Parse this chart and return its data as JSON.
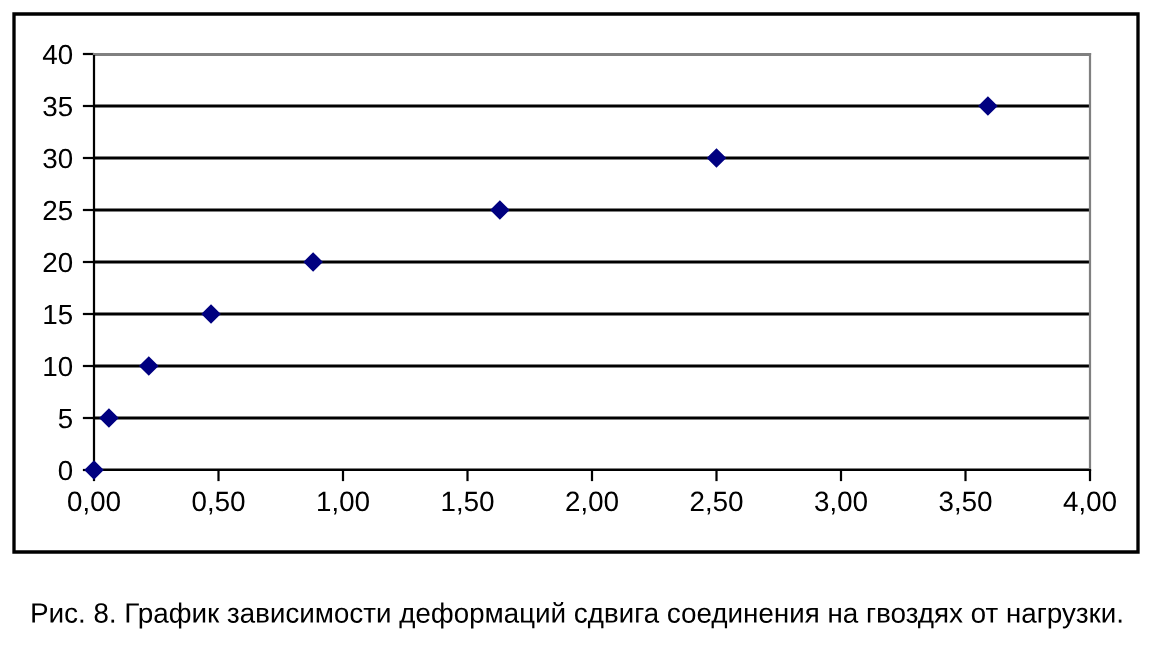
{
  "chart_data": {
    "type": "scatter",
    "x": [
      0,
      0.06,
      0.22,
      0.47,
      0.88,
      1.63,
      2.5,
      3.59
    ],
    "values": [
      0,
      5,
      10,
      15,
      20,
      25,
      30,
      35
    ],
    "color": "#000080",
    "marker": "diamond",
    "xlim": [
      0,
      4
    ],
    "xticks": [
      {
        "value": 0,
        "label": "0,00"
      },
      {
        "value": 0.5,
        "label": "0,50"
      },
      {
        "value": 1,
        "label": "1,00"
      },
      {
        "value": 1.5,
        "label": "1,50"
      },
      {
        "value": 2,
        "label": "2,00"
      },
      {
        "value": 2.5,
        "label": "2,50"
      },
      {
        "value": 3,
        "label": "3,00"
      },
      {
        "value": 3.5,
        "label": "3,50"
      },
      {
        "value": 4,
        "label": "4,00"
      }
    ],
    "ylim": [
      0,
      40
    ],
    "yticks": [
      0,
      5,
      10,
      15,
      20,
      25,
      30,
      35,
      40
    ],
    "grid": "y",
    "annotations": [
      "Рис. 8. График зависимости деформаций сдвига соединения на гвоздях от нагрузки."
    ]
  }
}
